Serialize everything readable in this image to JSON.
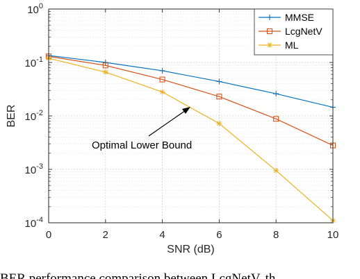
{
  "chart_data": {
    "type": "line",
    "xlabel": "SNR (dB)",
    "ylabel": "BER",
    "xlim": [
      0,
      10
    ],
    "ylim": [
      0.0001,
      1
    ],
    "yscale": "log",
    "grid": true,
    "legend_position": "top-right",
    "x_ticks": [
      "0",
      "2",
      "4",
      "6",
      "8",
      "10"
    ],
    "y_ticks": [
      {
        "base": "10",
        "exp": "0",
        "value": 1
      },
      {
        "base": "10",
        "exp": "-1",
        "value": 0.1
      },
      {
        "base": "10",
        "exp": "-2",
        "value": 0.01
      },
      {
        "base": "10",
        "exp": "-3",
        "value": 0.001
      },
      {
        "base": "10",
        "exp": "-4",
        "value": 0.0001
      }
    ],
    "series": [
      {
        "name": "MMSE",
        "color": "#0072BD",
        "marker": "plus",
        "x": [
          0,
          2,
          4,
          6,
          8,
          10
        ],
        "values": [
          0.135,
          0.1,
          0.07,
          0.044,
          0.026,
          0.0145
        ]
      },
      {
        "name": "LcgNetV",
        "color": "#D95319",
        "marker": "square",
        "x": [
          0,
          2,
          4,
          6,
          8,
          10
        ],
        "values": [
          0.13,
          0.088,
          0.048,
          0.023,
          0.0088,
          0.0028
        ]
      },
      {
        "name": "ML",
        "color": "#EDB120",
        "marker": "star",
        "x": [
          0,
          2,
          4,
          6,
          8,
          10
        ],
        "values": [
          0.12,
          0.066,
          0.028,
          0.0072,
          0.00095,
          0.00011
        ]
      }
    ],
    "annotation": {
      "text": "Optimal Lower Bound",
      "arrow_target": {
        "x": 5,
        "y": 0.013
      }
    }
  },
  "caption": "BER performance comparison between LcgNetV, th"
}
